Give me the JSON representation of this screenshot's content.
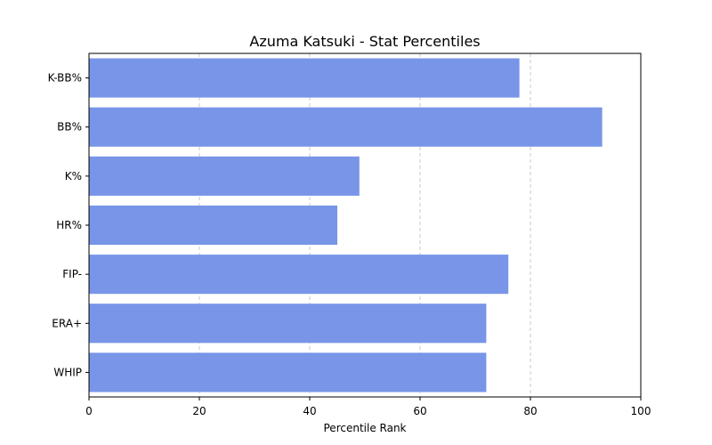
{
  "chart_data": {
    "type": "bar",
    "orientation": "horizontal",
    "title": "Azuma Katsuki - Stat Percentiles",
    "xlabel": "Percentile Rank",
    "ylabel": "",
    "categories": [
      "K-BB%",
      "BB%",
      "K%",
      "HR%",
      "FIP-",
      "ERA+",
      "WHIP"
    ],
    "values": [
      78,
      93,
      49,
      45,
      76,
      72,
      72
    ],
    "xlim": [
      0,
      100
    ],
    "xticks": [
      0,
      20,
      40,
      60,
      80,
      100
    ],
    "grid": "x-dashed",
    "bar_color": "#7895e8",
    "grid_color": "#c8c8c8"
  }
}
